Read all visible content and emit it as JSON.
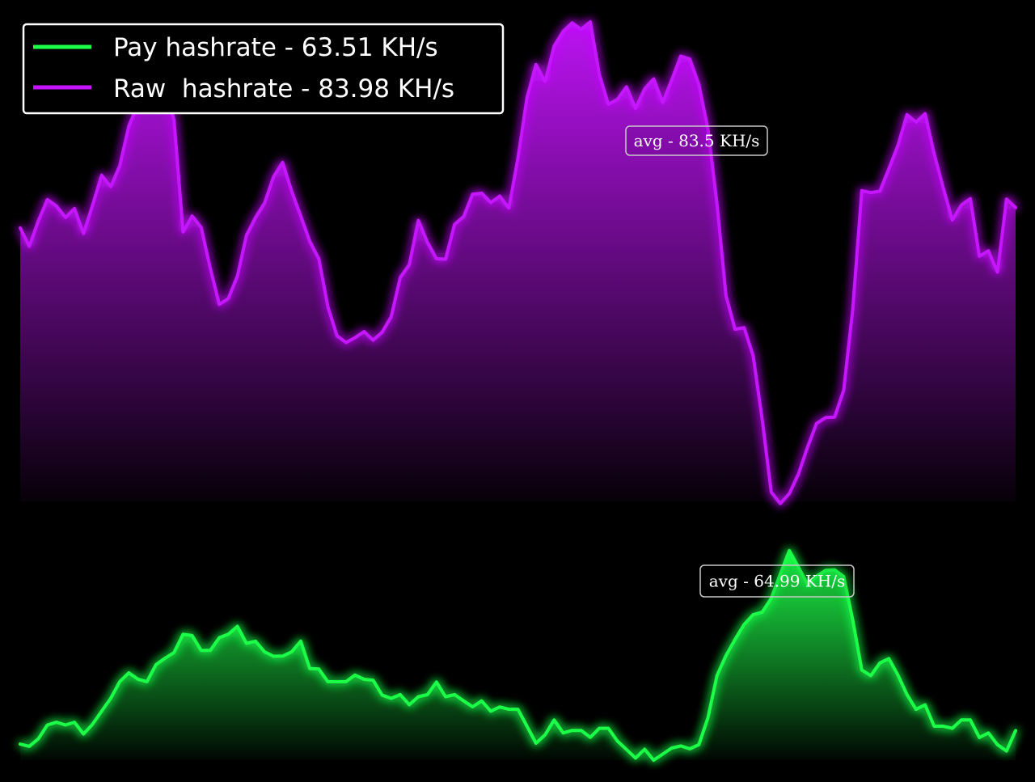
{
  "chart_data": {
    "type": "area",
    "title": "",
    "xlabel": "",
    "ylabel": "",
    "grid": false,
    "legend_position": "top-left",
    "series": [
      {
        "name": "Pay hashrate - 63.51 KH/s",
        "color": "#1eff4a",
        "annotation": "avg - 64.99 KH/s",
        "values": [
          7.7,
          6.6,
          10.2,
          16.8,
          18.1,
          16.8,
          18.1,
          12.5,
          17.2,
          23.4,
          29.5,
          37.5,
          41.7,
          38.7,
          37.5,
          45.6,
          48.7,
          51.4,
          60.1,
          59.5,
          52.4,
          52.4,
          58.5,
          60.1,
          63.9,
          55.8,
          56.8,
          51.7,
          49.6,
          49.7,
          51.7,
          56.8,
          43.8,
          43.5,
          37.5,
          37.5,
          37.5,
          40.6,
          38.6,
          38.2,
          31.1,
          29.5,
          31.3,
          26.5,
          30.3,
          31.3,
          37.3,
          30.3,
          31.3,
          28.3,
          25.5,
          28.3,
          23.4,
          25.4,
          24.3,
          24.3,
          16.2,
          8.1,
          12.1,
          19.2,
          13.0,
          14.2,
          14.2,
          10.9,
          15.2,
          15.2,
          9.1,
          5.1,
          1.0,
          5.2,
          0.0,
          2.9,
          5.8,
          6.8,
          5.4,
          7.4,
          20.2,
          40.4,
          50.0,
          57.7,
          64.8,
          69.5,
          70.7,
          77.3,
          88.9,
          100.0,
          92.2,
          84.1,
          87.8,
          90.6,
          90.9,
          87.7,
          66.9,
          43.1,
          40.4,
          46.4,
          48.5,
          40.6,
          31.3,
          24.3,
          26.4,
          16.2,
          16.2,
          15.2,
          19.2,
          19.2,
          10.8,
          13.0,
          7.4,
          4.4,
          14.1
        ]
      },
      {
        "name": "Raw  hashrate - 83.98 KH/s",
        "color": "#c614ff",
        "annotation": "avg - 83.5 KH/s",
        "values": [
          58.5,
          54.8,
          59.9,
          64.2,
          62.9,
          60.6,
          62.4,
          57.4,
          63.1,
          69.1,
          66.8,
          71.0,
          79.0,
          83.4,
          87.6,
          87.9,
          87.0,
          80.2,
          57.7,
          60.9,
          58.6,
          50.4,
          43.1,
          44.3,
          48.8,
          57.0,
          60.6,
          63.5,
          68.8,
          71.7,
          65.9,
          60.9,
          55.8,
          52.3,
          42.6,
          36.8,
          35.4,
          36.4,
          37.6,
          35.9,
          37.5,
          40.6,
          48.5,
          51.1,
          60.0,
          55.6,
          52.3,
          52.2,
          59.2,
          60.8,
          65.3,
          65.5,
          63.6,
          64.9,
          62.5,
          72.5,
          84.7,
          91.4,
          88.0,
          95.1,
          98.1,
          99.8,
          98.5,
          100.0,
          89.4,
          83.4,
          84.4,
          86.9,
          82.6,
          86.5,
          88.5,
          83.8,
          88.3,
          93.1,
          92.5,
          87.4,
          78.5,
          63.4,
          44.8,
          38.1,
          38.4,
          32.7,
          19.8,
          5.3,
          3.0,
          5.0,
          8.9,
          14.3,
          19.1,
          20.3,
          20.4,
          25.8,
          42.1,
          66.0,
          65.6,
          65.9,
          70.4,
          75.1,
          81.3,
          79.8,
          81.5,
          73.4,
          66.6,
          60.1,
          63.1,
          64.4,
          52.8,
          53.9,
          49.6,
          64.3,
          62.6
        ]
      }
    ]
  }
}
